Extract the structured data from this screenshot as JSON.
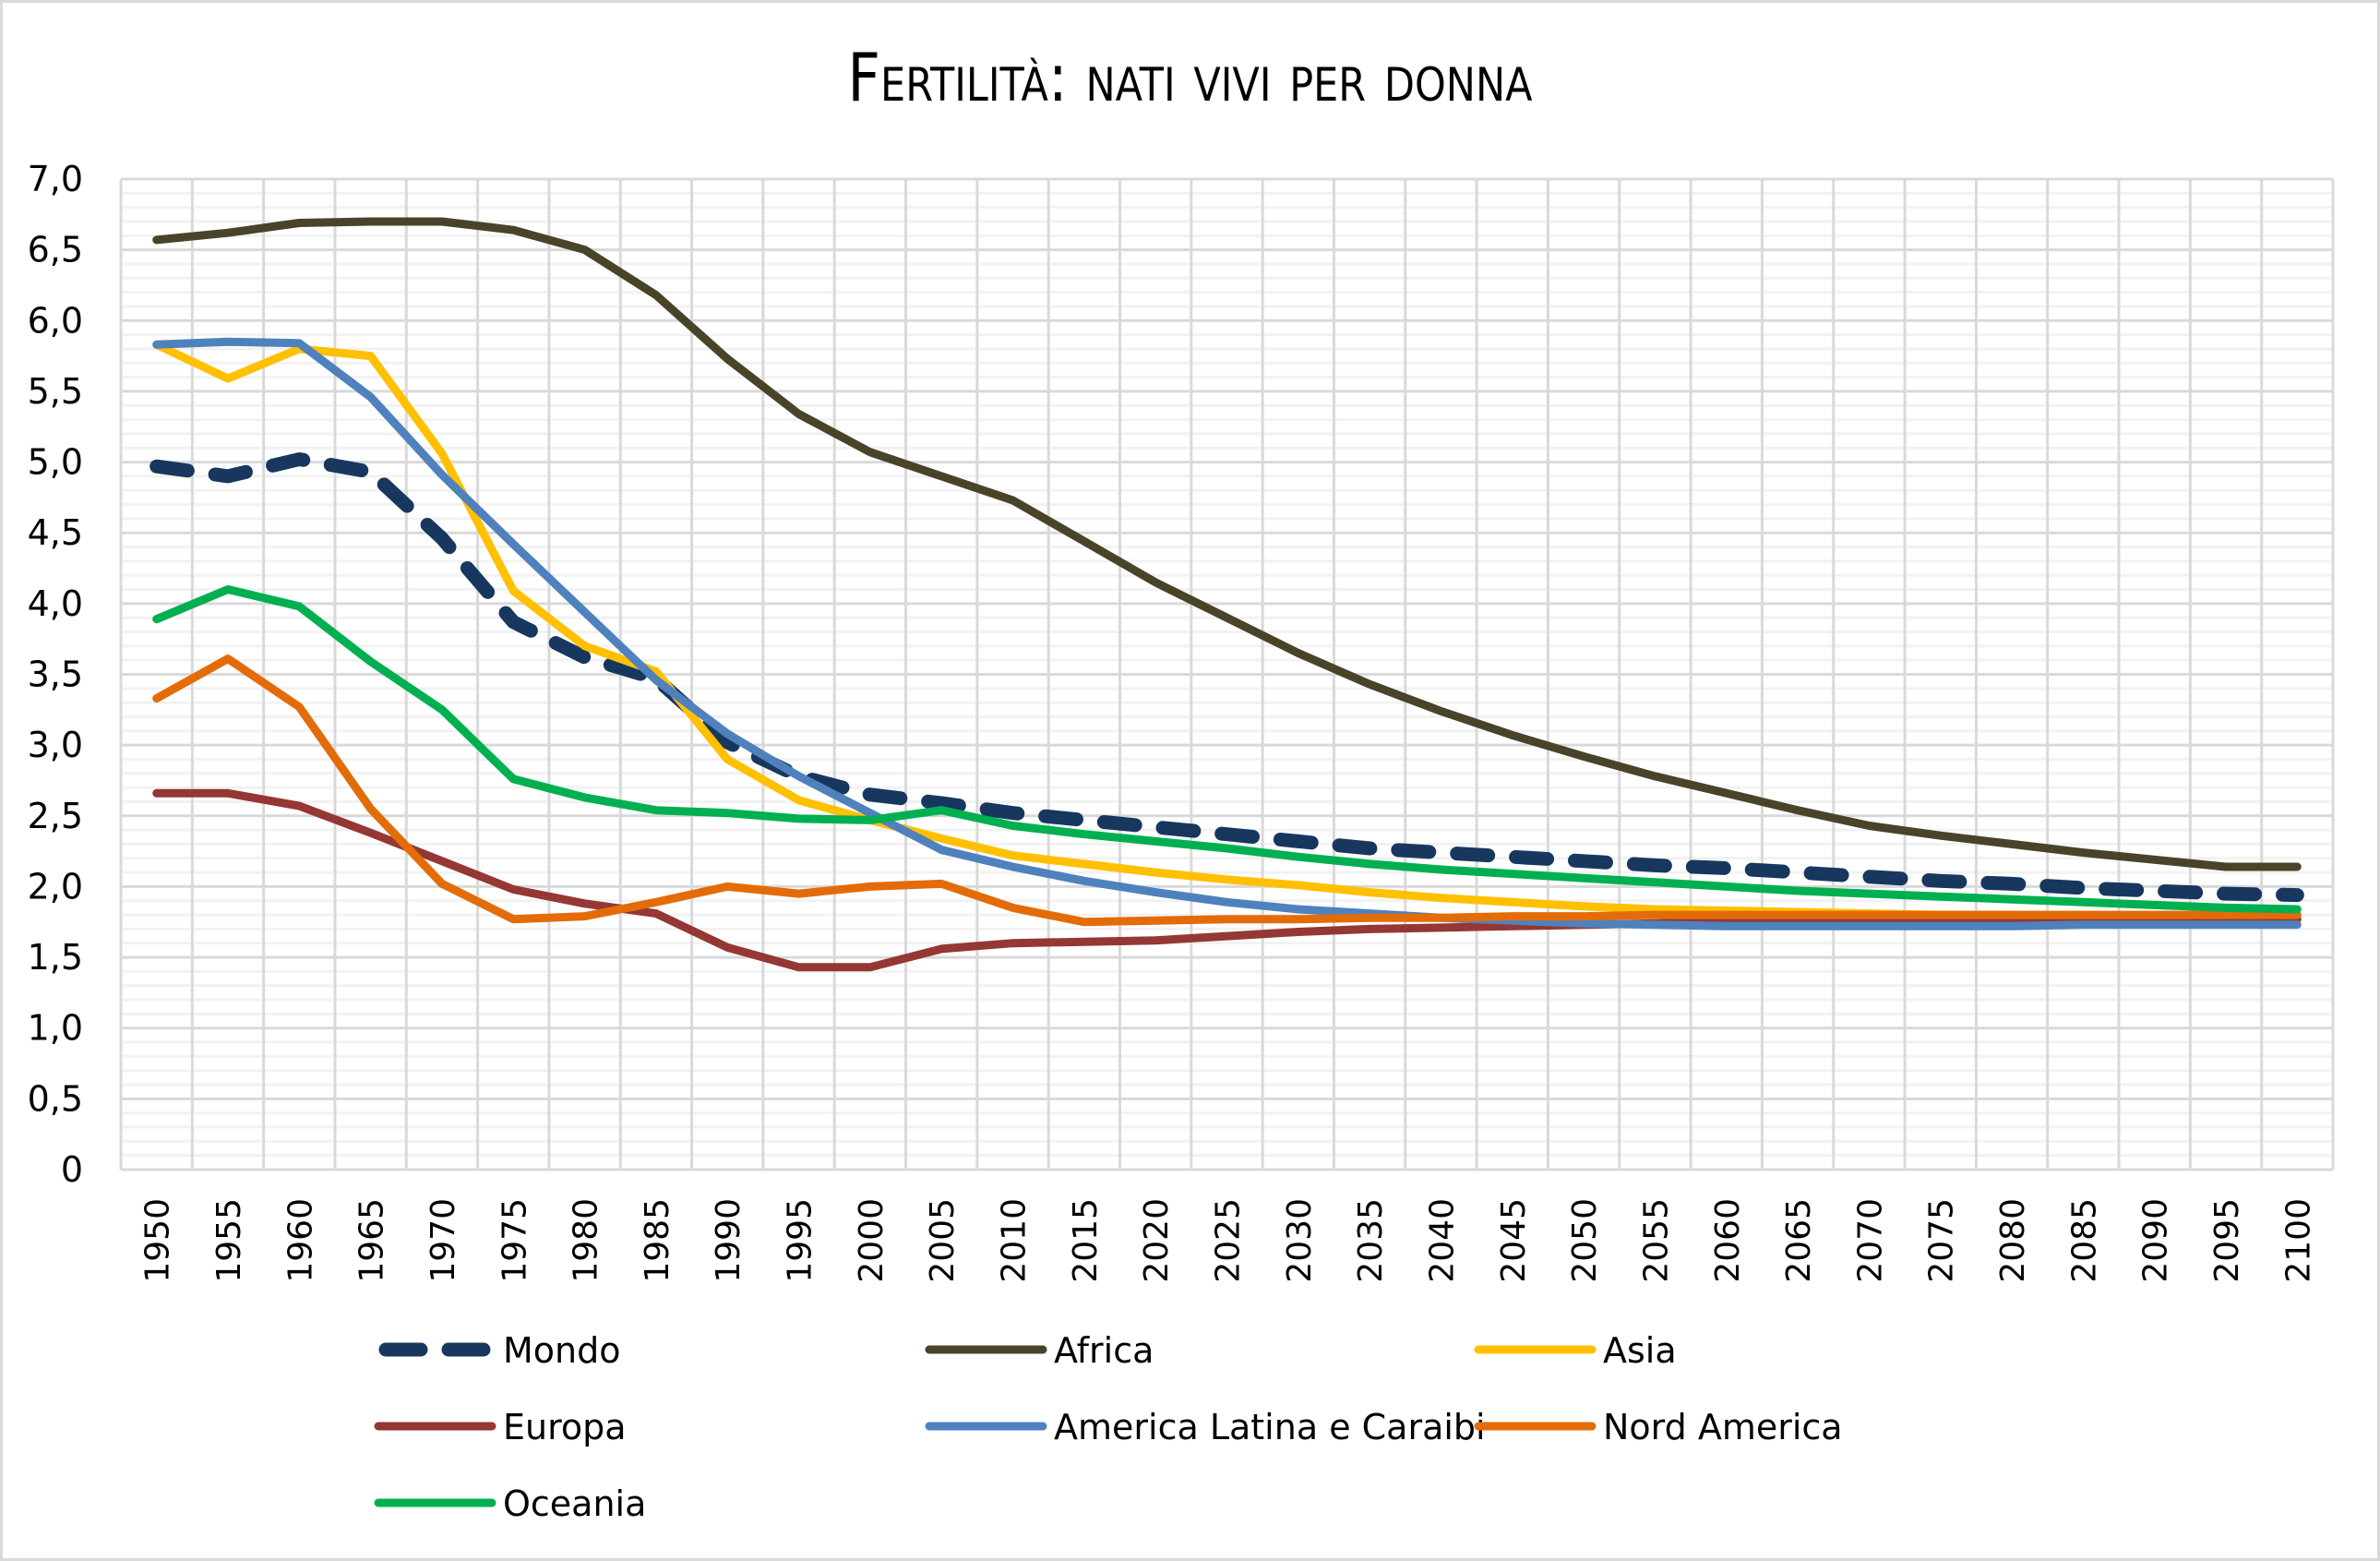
{
  "chart_data": {
    "type": "line",
    "title": "Fertilità: nati vivi per donna",
    "xlabel": "",
    "ylabel": "",
    "ylim": [
      0,
      7
    ],
    "grid": true,
    "legend_position": "bottom",
    "y_ticks": [
      "0",
      "0,5",
      "1,0",
      "1,5",
      "2,0",
      "2,5",
      "3,0",
      "3,5",
      "4,0",
      "4,5",
      "5,0",
      "5,5",
      "6,0",
      "6,5",
      "7,0"
    ],
    "y_tick_values": [
      0,
      0.5,
      1,
      1.5,
      2,
      2.5,
      3,
      3.5,
      4,
      4.5,
      5,
      5.5,
      6,
      6.5,
      7
    ],
    "categories": [
      "1950",
      "1955",
      "1960",
      "1965",
      "1970",
      "1975",
      "1980",
      "1985",
      "1990",
      "1995",
      "2000",
      "2005",
      "2010",
      "2015",
      "2020",
      "2025",
      "2030",
      "2035",
      "2040",
      "2045",
      "2050",
      "2055",
      "2060",
      "2065",
      "2070",
      "2075",
      "2080",
      "2085",
      "2090",
      "2095",
      "2100"
    ],
    "series": [
      {
        "name": "Mondo",
        "color": "#17375E",
        "dashed": true,
        "values": [
          4.97,
          4.9,
          5.02,
          4.93,
          4.46,
          3.87,
          3.62,
          3.47,
          3.02,
          2.78,
          2.65,
          2.59,
          2.52,
          2.47,
          2.42,
          2.37,
          2.32,
          2.27,
          2.24,
          2.21,
          2.18,
          2.15,
          2.13,
          2.1,
          2.07,
          2.04,
          2.02,
          1.99,
          1.97,
          1.95,
          1.94
        ]
      },
      {
        "name": "Africa",
        "color": "#494429",
        "dashed": false,
        "values": [
          6.57,
          6.62,
          6.69,
          6.7,
          6.7,
          6.64,
          6.5,
          6.18,
          5.73,
          5.34,
          5.07,
          4.9,
          4.73,
          4.44,
          4.15,
          3.9,
          3.65,
          3.43,
          3.24,
          3.07,
          2.92,
          2.78,
          2.66,
          2.54,
          2.43,
          2.36,
          2.3,
          2.24,
          2.19,
          2.14,
          2.14
        ]
      },
      {
        "name": "Asia",
        "color": "#FFC000",
        "dashed": false,
        "values": [
          5.83,
          5.59,
          5.8,
          5.75,
          5.06,
          4.09,
          3.7,
          3.52,
          2.9,
          2.61,
          2.47,
          2.34,
          2.22,
          2.16,
          2.1,
          2.05,
          2.01,
          1.96,
          1.92,
          1.89,
          1.86,
          1.84,
          1.83,
          1.82,
          1.81,
          1.8,
          1.8,
          1.8,
          1.8,
          1.8,
          1.8
        ]
      },
      {
        "name": "Europa",
        "color": "#953735",
        "dashed": false,
        "values": [
          2.66,
          2.66,
          2.57,
          2.38,
          2.18,
          1.98,
          1.88,
          1.81,
          1.57,
          1.43,
          1.43,
          1.56,
          1.6,
          1.61,
          1.62,
          1.65,
          1.68,
          1.7,
          1.71,
          1.72,
          1.73,
          1.74,
          1.75,
          1.76,
          1.76,
          1.76,
          1.77,
          1.77,
          1.77,
          1.77,
          1.77
        ]
      },
      {
        "name": "America Latina e Caraibi",
        "color": "#4F81BD",
        "dashed": false,
        "values": [
          5.83,
          5.85,
          5.84,
          5.46,
          4.91,
          4.42,
          3.94,
          3.46,
          3.08,
          2.78,
          2.52,
          2.26,
          2.14,
          2.04,
          1.96,
          1.89,
          1.84,
          1.81,
          1.78,
          1.76,
          1.74,
          1.73,
          1.72,
          1.72,
          1.72,
          1.72,
          1.72,
          1.73,
          1.73,
          1.73,
          1.73
        ]
      },
      {
        "name": "Nord America",
        "color": "#E36C09",
        "dashed": false,
        "values": [
          3.33,
          3.61,
          3.27,
          2.55,
          2.02,
          1.77,
          1.79,
          1.89,
          2.0,
          1.95,
          2.0,
          2.02,
          1.85,
          1.75,
          1.76,
          1.77,
          1.77,
          1.78,
          1.78,
          1.79,
          1.79,
          1.8,
          1.8,
          1.8,
          1.8,
          1.8,
          1.8,
          1.8,
          1.8,
          1.8,
          1.8
        ]
      },
      {
        "name": "Oceania",
        "color": "#00B050",
        "dashed": false,
        "values": [
          3.89,
          4.1,
          3.98,
          3.59,
          3.25,
          2.76,
          2.63,
          2.54,
          2.52,
          2.48,
          2.47,
          2.54,
          2.43,
          2.37,
          2.32,
          2.27,
          2.21,
          2.16,
          2.12,
          2.09,
          2.06,
          2.03,
          2.0,
          1.97,
          1.95,
          1.93,
          1.91,
          1.89,
          1.87,
          1.85,
          1.84
        ]
      }
    ]
  }
}
